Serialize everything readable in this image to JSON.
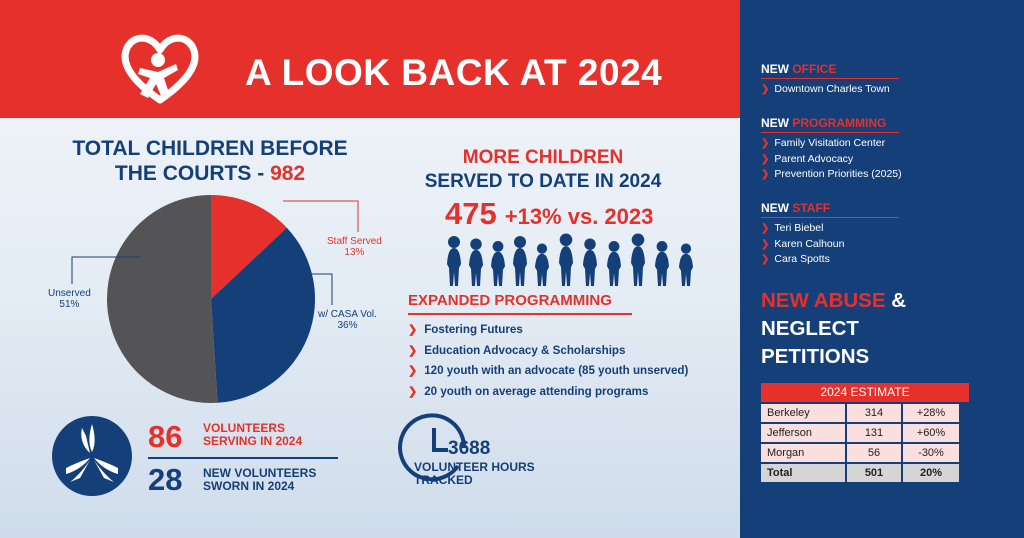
{
  "banner": {
    "title": "A LOOK BACK AT 2024",
    "logo_icon": "heart-figure-icon"
  },
  "total_children": {
    "title_line1": "TOTAL CHILDREN BEFORE",
    "title_line2": "THE COURTS -",
    "value": "982"
  },
  "chart_data": {
    "type": "pie",
    "title": "TOTAL CHILDREN BEFORE THE COURTS - 982",
    "slices": [
      {
        "label": "Staff Served",
        "value": 13,
        "display": "13%",
        "color": "#e5302b"
      },
      {
        "label": "w/ CASA Vol.",
        "value": 36,
        "display": "36%",
        "color": "#153f78"
      },
      {
        "label": "Unserved",
        "value": 51,
        "display": "51%",
        "color": "#545456"
      }
    ]
  },
  "more_children": {
    "line1": "MORE CHILDREN",
    "line2": "SERVED TO DATE IN 2024",
    "count": "475",
    "change": "+13% vs. 2023"
  },
  "expanded": {
    "title": "EXPANDED PROGRAMMING",
    "items": [
      "Fostering Futures",
      "Education Advocacy & Scholarships",
      "120 youth with an advocate (85 youth unserved)",
      "20 youth on average attending programs"
    ]
  },
  "volunteers": {
    "serving_count": "86",
    "serving_label1": "VOLUNTEERS",
    "serving_label2": "SERVING IN 2024",
    "new_count": "28",
    "new_label1": "NEW VOLUNTEERS",
    "new_label2": "SWORN IN 2024"
  },
  "hours": {
    "count": "3688",
    "label1": "VOLUNTEER HOURS",
    "label2": "TRACKED"
  },
  "sidebar": {
    "new_word": "NEW",
    "office": {
      "accent": "OFFICE",
      "items": [
        "Downtown Charles Town"
      ]
    },
    "programming": {
      "accent": "PROGRAMMING",
      "items": [
        "Family Visitation Center",
        "Parent Advocacy",
        "Prevention Priorities (2025)"
      ]
    },
    "staff": {
      "accent": "STAFF",
      "items": [
        "Teri Biebel",
        "Karen Calhoun",
        "Cara Spotts"
      ]
    }
  },
  "abuse": {
    "line1_red": "NEW ABUSE",
    "line1_white": " &",
    "line2": "NEGLECT",
    "line3": "PETITIONS",
    "estimate_header": "2024 ESTIMATE",
    "rows": [
      {
        "county": "Berkeley",
        "value": "314",
        "change": "+28%"
      },
      {
        "county": "Jefferson",
        "value": "131",
        "change": "+60%"
      },
      {
        "county": "Morgan",
        "value": "56",
        "change": "-30%"
      }
    ],
    "total": {
      "label": "Total",
      "value": "501",
      "change": "20%"
    }
  },
  "colors": {
    "brand_red": "#e5302b",
    "brand_navy": "#153f78",
    "unserved_gray": "#545456"
  }
}
